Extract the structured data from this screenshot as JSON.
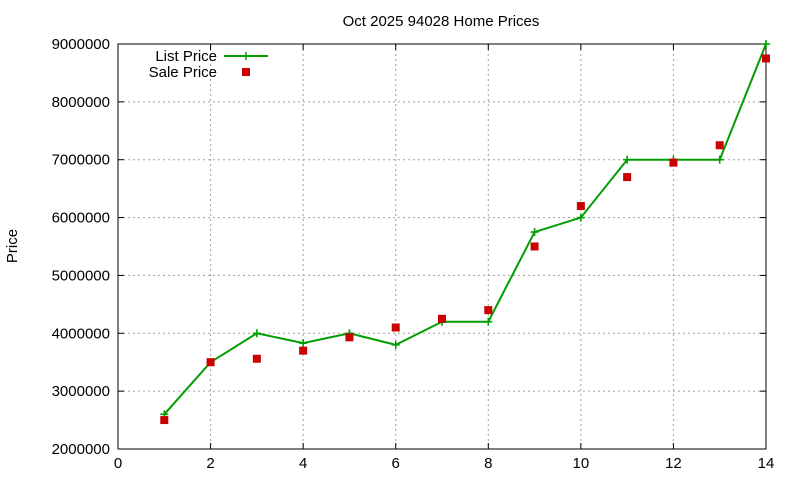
{
  "chart_data": {
    "type": "line",
    "title": "Oct 2025 94028 Home Prices",
    "xlabel": "",
    "ylabel": "Price",
    "xlim": [
      0,
      14
    ],
    "ylim": [
      2000000,
      9000000
    ],
    "x_ticks": [
      "0",
      "2",
      "4",
      "6",
      "8",
      "10",
      "12",
      "14"
    ],
    "y_ticks": [
      "2000000",
      "3000000",
      "4000000",
      "5000000",
      "6000000",
      "7000000",
      "8000000",
      "9000000"
    ],
    "grid": true,
    "legend_position": "top-left",
    "x": [
      1,
      2,
      3,
      4,
      5,
      6,
      7,
      8,
      9,
      10,
      11,
      12,
      13,
      14
    ],
    "series": [
      {
        "name": "List Price",
        "style": "linespoints",
        "marker": "plus",
        "color": "#009e00",
        "values": [
          2600000,
          3500000,
          4000000,
          3830000,
          4000000,
          3800000,
          4200000,
          4200000,
          5750000,
          6000000,
          7000000,
          7000000,
          7000000,
          9000000
        ]
      },
      {
        "name": "Sale Price",
        "style": "points",
        "marker": "square",
        "color": "#cc0000",
        "values": [
          2500000,
          3500000,
          3560000,
          3700000,
          3930000,
          4100000,
          4250000,
          4400000,
          5500000,
          6200000,
          6700000,
          6950000,
          7250000,
          8750000
        ]
      }
    ]
  }
}
